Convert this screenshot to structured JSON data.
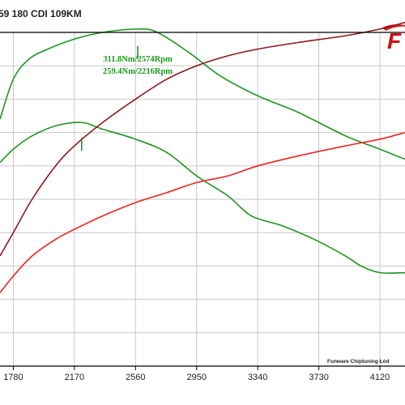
{
  "title": "59 180 CDI 109KM",
  "footer": "Funware Chiptuning Łód",
  "logo": {
    "letter": "F",
    "color": "#cc1111"
  },
  "colors": {
    "grid": "#c8c8c8",
    "frame": "#000000",
    "tuned_power": "#8a1a1a",
    "stock_power": "#ee2222",
    "tuned_torque": "#1f941f",
    "stock_torque": "#1f941f"
  },
  "chart_data": {
    "type": "line",
    "title": "59 180 CDI 109KM",
    "xlabel": "",
    "ylabel": "",
    "x_ticks": [
      "1780",
      "2170",
      "2560",
      "2950",
      "3340",
      "3730",
      "4120"
    ],
    "xlim": [
      1695,
      4280
    ],
    "ylim": [
      0,
      100
    ],
    "grid": true,
    "annotations": [
      {
        "text": "311.8Nm/2574Rpm",
        "x": 2574,
        "y": 94.0,
        "series": "tuned_torque"
      },
      {
        "text": "259.4Nm/2216Rpm",
        "x": 2216,
        "y": 66.5,
        "series": "stock_torque"
      }
    ],
    "series": [
      {
        "id": "tuned_torque",
        "points": [
          [
            1695,
            74
          ],
          [
            1780,
            86
          ],
          [
            1880,
            92
          ],
          [
            2000,
            95
          ],
          [
            2170,
            98
          ],
          [
            2350,
            100
          ],
          [
            2574,
            101
          ],
          [
            2700,
            100
          ],
          [
            2900,
            94
          ],
          [
            3100,
            87
          ],
          [
            3340,
            81
          ],
          [
            3600,
            76
          ],
          [
            3900,
            69
          ],
          [
            4120,
            65
          ],
          [
            4280,
            62
          ]
        ]
      },
      {
        "id": "stock_torque",
        "points": [
          [
            1695,
            61
          ],
          [
            1780,
            65
          ],
          [
            1900,
            69
          ],
          [
            2050,
            72
          ],
          [
            2216,
            73
          ],
          [
            2350,
            71
          ],
          [
            2560,
            68
          ],
          [
            2760,
            64
          ],
          [
            2950,
            57
          ],
          [
            3150,
            51
          ],
          [
            3300,
            45
          ],
          [
            3500,
            42
          ],
          [
            3700,
            38
          ],
          [
            3900,
            33
          ],
          [
            4000,
            30
          ],
          [
            4120,
            28
          ],
          [
            4280,
            28
          ]
        ]
      },
      {
        "id": "tuned_power",
        "points": [
          [
            1695,
            33
          ],
          [
            1780,
            40
          ],
          [
            1900,
            50
          ],
          [
            2050,
            60
          ],
          [
            2170,
            66
          ],
          [
            2350,
            73
          ],
          [
            2560,
            80
          ],
          [
            2760,
            86
          ],
          [
            2950,
            90
          ],
          [
            3150,
            93
          ],
          [
            3340,
            95
          ],
          [
            3600,
            97
          ],
          [
            3900,
            99
          ],
          [
            4120,
            101
          ],
          [
            4280,
            103
          ]
        ]
      },
      {
        "id": "stock_power",
        "points": [
          [
            1695,
            22
          ],
          [
            1780,
            27
          ],
          [
            1900,
            33
          ],
          [
            2050,
            38
          ],
          [
            2170,
            41
          ],
          [
            2350,
            45
          ],
          [
            2560,
            49
          ],
          [
            2760,
            52
          ],
          [
            2950,
            55
          ],
          [
            3150,
            57
          ],
          [
            3340,
            60
          ],
          [
            3600,
            63
          ],
          [
            3900,
            66
          ],
          [
            4120,
            68
          ],
          [
            4280,
            70
          ]
        ]
      }
    ]
  }
}
